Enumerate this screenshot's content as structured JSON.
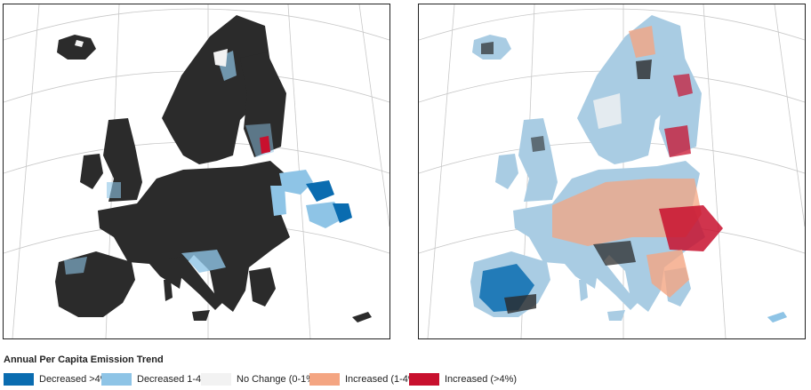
{
  "maps": [
    {
      "name": "left-map",
      "land_color": "#2b2b2b",
      "water_color": "#ffffff"
    },
    {
      "name": "right-map",
      "land_color": "#a9cce3",
      "water_color": "#ffffff"
    }
  ],
  "legend": {
    "title": "Annual Per Capita Emission Trend",
    "items": [
      {
        "label": "Decreased >4%",
        "color": "#0a6cb0"
      },
      {
        "label": "Decreased 1-4%",
        "color": "#8ec4e6"
      },
      {
        "label": "No Change (0-1%)",
        "color": "#f2f2f2"
      },
      {
        "label": "Increased (1-4%)",
        "color": "#f4a582"
      },
      {
        "label": "Increased (>4%)",
        "color": "#c8102e"
      }
    ]
  }
}
